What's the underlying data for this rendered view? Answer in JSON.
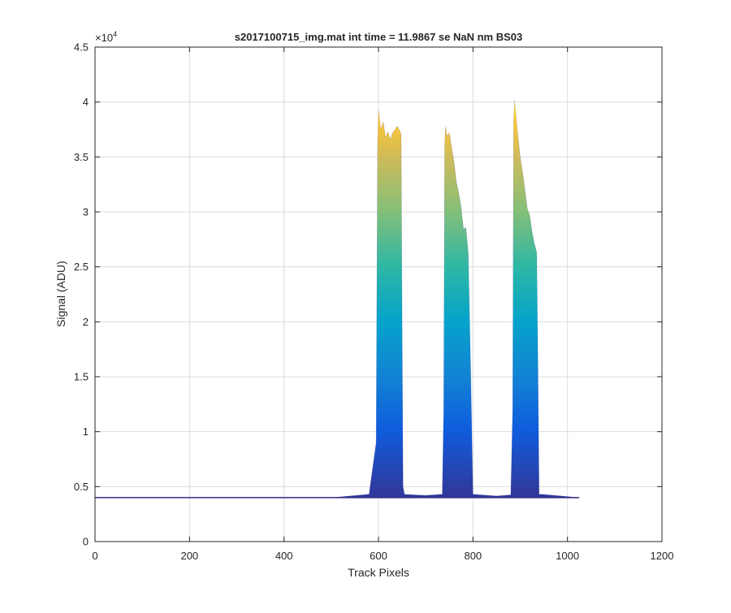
{
  "chart_data": {
    "type": "area",
    "title": "s2017100715_img.mat int time = 11.9867 se  NaN nm BS03",
    "xlabel": "Track Pixels",
    "ylabel": "Signal (ADU)",
    "y_exponent_label": "×10",
    "y_exponent": "4",
    "xlim": [
      0,
      1200
    ],
    "ylim": [
      0,
      45000
    ],
    "grid": true,
    "x_ticks": [
      0,
      200,
      400,
      600,
      800,
      1000,
      1200
    ],
    "x_tick_labels": [
      "0",
      "200",
      "400",
      "600",
      "800",
      "1000",
      "1200"
    ],
    "y_ticks": [
      0,
      5000,
      10000,
      15000,
      20000,
      25000,
      30000,
      35000,
      40000,
      45000
    ],
    "y_tick_labels": [
      "0",
      "0.5",
      "1",
      "1.5",
      "2",
      "2.5",
      "3",
      "3.5",
      "4",
      "4.5"
    ],
    "colormap": "parula",
    "baseline": 4000,
    "envelope": {
      "x": [
        0,
        500,
        580,
        595,
        598,
        600,
        605,
        610,
        615,
        620,
        625,
        630,
        635,
        640,
        645,
        648,
        650,
        652,
        655,
        700,
        735,
        738,
        740,
        742,
        745,
        750,
        755,
        760,
        765,
        770,
        775,
        780,
        785,
        790,
        795,
        800,
        850,
        880,
        884,
        886,
        888,
        890,
        895,
        900,
        905,
        910,
        915,
        920,
        925,
        930,
        935,
        938,
        940,
        945,
        1000,
        1025
      ],
      "y": [
        4000,
        4000,
        4300,
        9000,
        36000,
        39300,
        37500,
        38200,
        36800,
        37300,
        36600,
        37200,
        37500,
        37800,
        37400,
        37000,
        20000,
        5000,
        4300,
        4200,
        4300,
        12000,
        36000,
        37800,
        36900,
        37200,
        35800,
        34500,
        32700,
        31700,
        30400,
        28400,
        28600,
        26300,
        16000,
        4300,
        4150,
        4250,
        12000,
        38300,
        40200,
        39200,
        37000,
        35000,
        33600,
        32000,
        30300,
        29700,
        28200,
        27100,
        26300,
        14000,
        4300,
        4300,
        4100,
        4000
      ]
    }
  }
}
